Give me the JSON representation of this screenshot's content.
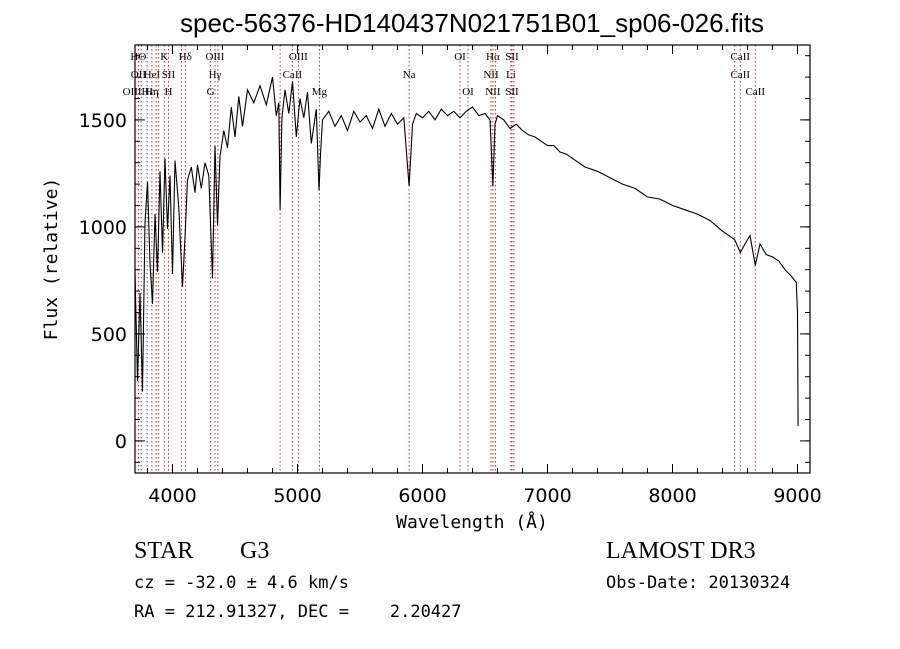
{
  "chart_data": {
    "type": "line",
    "title": "spec-56376-HD140437N021751B01_sp06-026.fits",
    "xlabel": "Wavelength (Å)",
    "ylabel": "Flux (relative)",
    "xlim": [
      3700,
      9100
    ],
    "ylim": [
      -150,
      1850
    ],
    "xticks": [
      4000,
      5000,
      6000,
      7000,
      8000,
      9000
    ],
    "yticks": [
      0,
      500,
      1000,
      1500
    ],
    "grid": false,
    "series": [
      {
        "name": "flux",
        "x": [
          3700,
          3720,
          3740,
          3760,
          3780,
          3800,
          3820,
          3840,
          3860,
          3880,
          3900,
          3920,
          3940,
          3960,
          3980,
          4000,
          4020,
          4050,
          4080,
          4100,
          4120,
          4150,
          4180,
          4200,
          4230,
          4260,
          4290,
          4320,
          4340,
          4360,
          4380,
          4410,
          4440,
          4470,
          4500,
          4530,
          4560,
          4600,
          4650,
          4700,
          4750,
          4800,
          4830,
          4850,
          4861,
          4875,
          4900,
          4930,
          4960,
          4990,
          5020,
          5050,
          5080,
          5110,
          5150,
          5172,
          5184,
          5200,
          5250,
          5300,
          5350,
          5400,
          5450,
          5500,
          5550,
          5600,
          5650,
          5700,
          5750,
          5800,
          5850,
          5893,
          5920,
          5950,
          6000,
          6050,
          6100,
          6150,
          6200,
          6250,
          6300,
          6350,
          6400,
          6450,
          6500,
          6540,
          6563,
          6580,
          6600,
          6650,
          6700,
          6750,
          6800,
          6850,
          6900,
          6950,
          7000,
          7050,
          7100,
          7150,
          7200,
          7300,
          7400,
          7500,
          7600,
          7700,
          7800,
          7900,
          8000,
          8100,
          8200,
          8300,
          8400,
          8498,
          8542,
          8580,
          8620,
          8662,
          8700,
          8750,
          8800,
          8850,
          8900,
          8950,
          8990,
          9000,
          9005
        ],
        "values": [
          790,
          280,
          690,
          230,
          1020,
          1210,
          830,
          640,
          1060,
          790,
          1260,
          880,
          1320,
          990,
          1240,
          780,
          1310,
          1090,
          720,
          950,
          1220,
          1280,
          1160,
          1290,
          1180,
          1300,
          1240,
          760,
          1380,
          1010,
          1330,
          1450,
          1370,
          1560,
          1420,
          1610,
          1470,
          1640,
          1580,
          1660,
          1570,
          1700,
          1520,
          1580,
          1080,
          1510,
          1640,
          1530,
          1680,
          1420,
          1600,
          1510,
          1630,
          1390,
          1550,
          1170,
          1340,
          1500,
          1540,
          1470,
          1520,
          1450,
          1540,
          1490,
          1520,
          1460,
          1550,
          1470,
          1530,
          1480,
          1510,
          1190,
          1480,
          1530,
          1510,
          1540,
          1500,
          1550,
          1520,
          1540,
          1510,
          1540,
          1560,
          1520,
          1530,
          1500,
          1190,
          1480,
          1520,
          1500,
          1460,
          1480,
          1450,
          1430,
          1420,
          1400,
          1380,
          1380,
          1350,
          1340,
          1320,
          1280,
          1260,
          1230,
          1200,
          1180,
          1140,
          1130,
          1100,
          1080,
          1060,
          1030,
          980,
          940,
          880,
          920,
          960,
          820,
          920,
          870,
          860,
          840,
          800,
          770,
          740,
          600,
          70
        ]
      }
    ],
    "lines": [
      {
        "wl": 3727,
        "labels": [
          "HΘ",
          "OII",
          "OIIIHε"
        ]
      },
      {
        "wl": 3750,
        "labels": [],
        "no_dash": true
      },
      {
        "wl": 3797,
        "labels": [
          "",
          "",
          ""
        ]
      },
      {
        "wl": 3835,
        "labels": [
          "",
          "HeI",
          "Hη"
        ]
      },
      {
        "wl": 3869,
        "labels": [],
        "no_dash": true
      },
      {
        "wl": 3889,
        "labels": [],
        "no_dash": true
      },
      {
        "wl": 3934,
        "labels": [
          "K",
          "",
          ""
        ]
      },
      {
        "wl": 3968,
        "labels": [
          "",
          "SII",
          "H"
        ]
      },
      {
        "wl": 4072,
        "labels": [],
        "no_dash": true
      },
      {
        "wl": 4102,
        "labels": [
          "Hδ",
          "",
          ""
        ]
      },
      {
        "wl": 4305,
        "labels": [
          "",
          "",
          "G"
        ]
      },
      {
        "wl": 4340,
        "labels": [
          "OIII",
          "Hγ",
          ""
        ]
      },
      {
        "wl": 4363,
        "labels": [],
        "no_dash": true
      },
      {
        "wl": 4861,
        "labels": [],
        "no_dash": true
      },
      {
        "wl": 4959,
        "labels": [
          "",
          "CaII",
          ""
        ]
      },
      {
        "wl": 5007,
        "labels": [
          "OIII",
          "",
          ""
        ]
      },
      {
        "wl": 5175,
        "labels": [
          "",
          "",
          "Mg"
        ]
      },
      {
        "wl": 5893,
        "labels": [
          "",
          "Na",
          ""
        ]
      },
      {
        "wl": 6300,
        "labels": [
          "OI",
          "",
          ""
        ]
      },
      {
        "wl": 6364,
        "labels": [
          "",
          "",
          "OI"
        ]
      },
      {
        "wl": 6548,
        "labels": [
          "",
          "NII",
          ""
        ]
      },
      {
        "wl": 6563,
        "labels": [
          "Hα",
          "",
          "NII"
        ]
      },
      {
        "wl": 6583,
        "labels": [],
        "no_dash": true
      },
      {
        "wl": 6707,
        "labels": [
          "",
          "Li",
          ""
        ]
      },
      {
        "wl": 6716,
        "labels": [
          "SII",
          "",
          "SII"
        ]
      },
      {
        "wl": 6731,
        "labels": [],
        "no_dash": true
      },
      {
        "wl": 8498,
        "labels": [],
        "no_dash": true
      },
      {
        "wl": 8542,
        "labels": [
          "CaII",
          "CaII",
          ""
        ]
      },
      {
        "wl": 8662,
        "labels": [
          "",
          "",
          "CaII"
        ]
      }
    ]
  },
  "info": {
    "object_class": "STAR",
    "subclass": "G3",
    "survey": "LAMOST DR3",
    "redshift": "cz = -32.0 ± 4.6 km/s",
    "obs_date": "Obs-Date: 20130324",
    "coords": "RA = 212.91327, DEC =    2.20427"
  }
}
